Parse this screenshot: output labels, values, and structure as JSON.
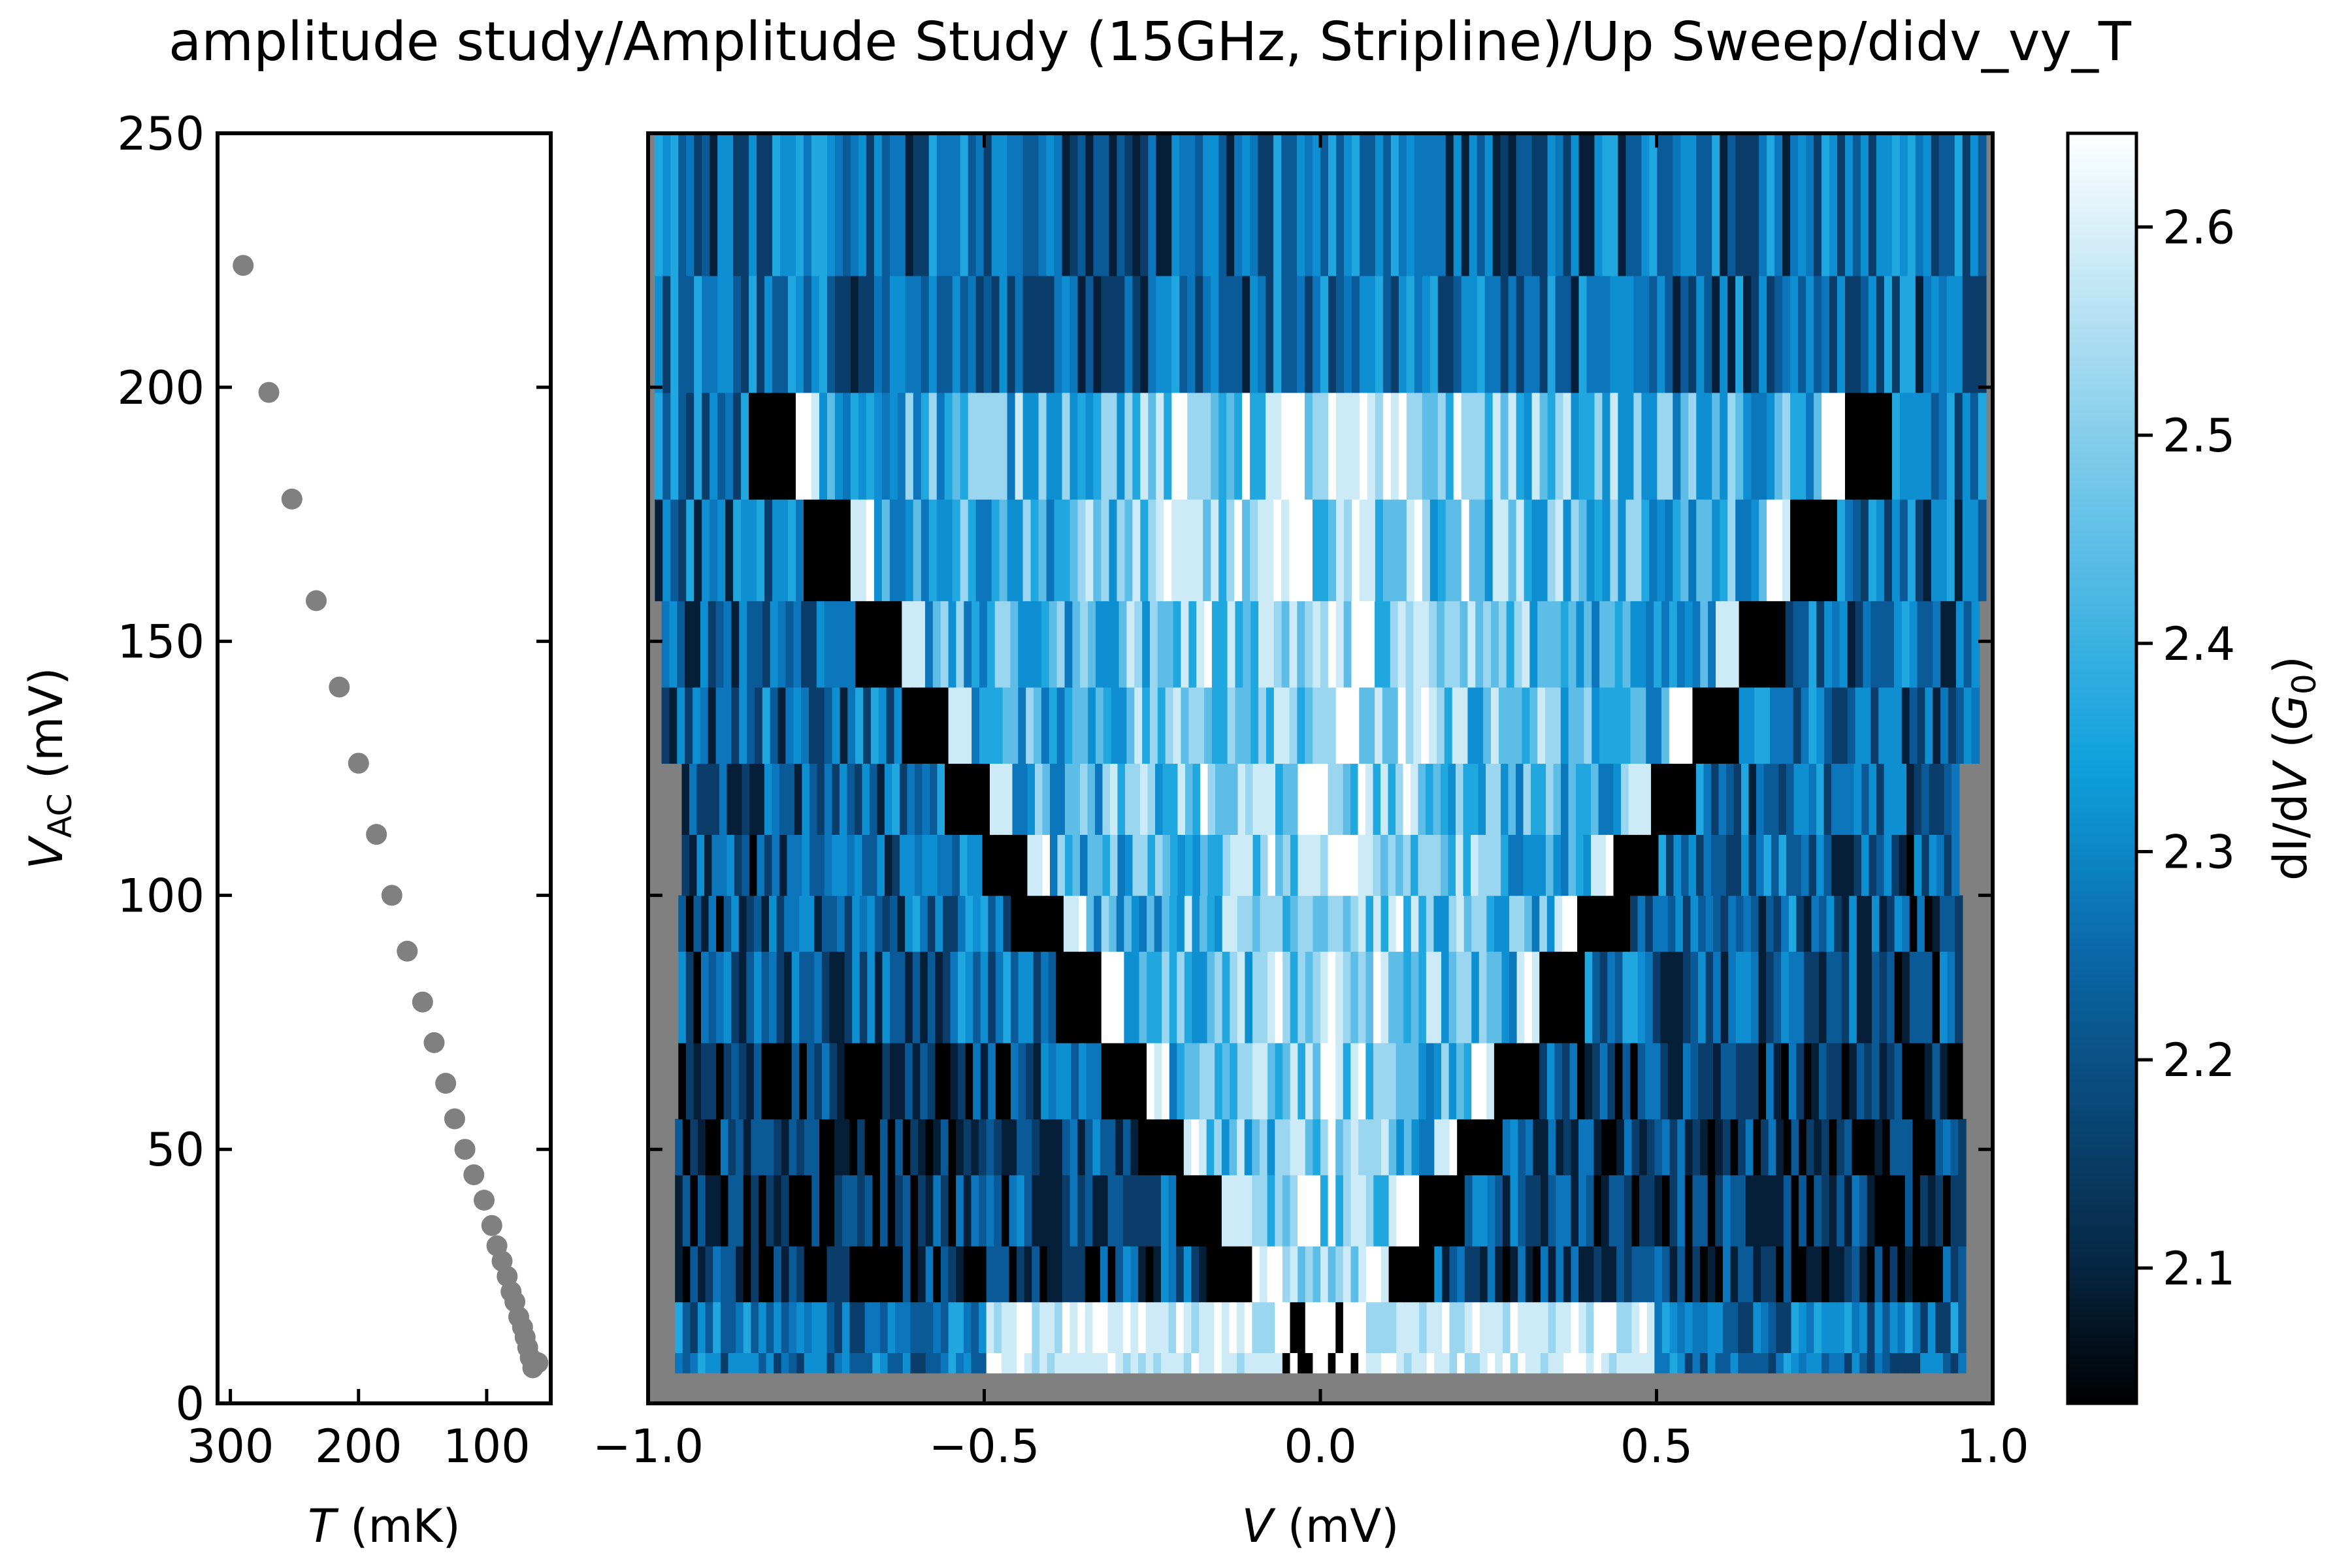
{
  "title": "amplitude study/Amplitude Study (15GHz, Stripline)/Up Sweep/didv_vy_T",
  "chart_data": [
    {
      "type": "scatter",
      "xlabel_italic": "T",
      "xlabel_rest": " (mK)",
      "ylabel_main": "V",
      "ylabel_sub": "AC",
      "ylabel_rest": " (mV)",
      "xlim": [
        310,
        50
      ],
      "ylim": [
        0,
        250
      ],
      "xticks": [
        300,
        200,
        100
      ],
      "yticks": [
        0,
        50,
        100,
        150,
        200,
        250
      ],
      "x_reversed": true,
      "marker_color": "#808080",
      "points": [
        [
          290,
          224
        ],
        [
          270,
          199
        ],
        [
          252,
          178
        ],
        [
          233,
          158
        ],
        [
          215,
          141
        ],
        [
          200,
          126
        ],
        [
          186,
          112
        ],
        [
          174,
          100
        ],
        [
          162,
          89
        ],
        [
          150,
          79
        ],
        [
          141,
          71
        ],
        [
          132,
          63
        ],
        [
          125,
          56
        ],
        [
          117,
          50
        ],
        [
          110,
          45
        ],
        [
          102,
          40
        ],
        [
          96,
          35
        ],
        [
          92,
          31
        ],
        [
          88,
          28
        ],
        [
          84,
          25
        ],
        [
          81,
          22
        ],
        [
          78,
          20
        ],
        [
          75,
          17
        ],
        [
          72,
          15
        ],
        [
          70,
          13
        ],
        [
          68,
          11
        ],
        [
          66,
          9
        ],
        [
          64,
          7
        ],
        [
          62,
          8
        ],
        [
          60,
          8
        ]
      ]
    },
    {
      "type": "heatmap",
      "xlabel_italic": "V",
      "xlabel_rest": " (mV)",
      "xlim": [
        -1.0,
        1.0
      ],
      "ylim": [
        0,
        250
      ],
      "xticks": [
        "−1.0",
        "−0.5",
        "0.0",
        "0.5",
        "1.0"
      ],
      "xtick_values": [
        -1.0,
        -0.5,
        0.0,
        0.5,
        1.0
      ],
      "yticks": [
        0,
        50,
        100,
        150,
        200,
        250
      ],
      "nan_color": "#808080",
      "colormap": [
        "#000000",
        "#0a3b63",
        "#0b72b5",
        "#0ea0dc",
        "#74c7ea",
        "#ffffff"
      ],
      "rows": [
        {
          "v_ac": [
            6,
            10
          ],
          "half_width": 0.96
        },
        {
          "v_ac": [
            10,
            20
          ],
          "half_width": 0.96
        },
        {
          "v_ac": [
            20,
            31
          ],
          "half_width": 0.96
        },
        {
          "v_ac": [
            31,
            45
          ],
          "half_width": 0.96
        },
        {
          "v_ac": [
            45,
            56
          ],
          "half_width": 0.96
        },
        {
          "v_ac": [
            56,
            71
          ],
          "half_width": 0.955
        },
        {
          "v_ac": [
            71,
            89
          ],
          "half_width": 0.955
        },
        {
          "v_ac": [
            89,
            100
          ],
          "half_width": 0.955
        },
        {
          "v_ac": [
            100,
            112
          ],
          "half_width": 0.95
        },
        {
          "v_ac": [
            112,
            126
          ],
          "half_width": 0.95
        },
        {
          "v_ac": [
            126,
            141
          ],
          "half_width": 0.98
        },
        {
          "v_ac": [
            141,
            158
          ],
          "half_width": 0.98
        },
        {
          "v_ac": [
            158,
            178
          ],
          "half_width": 0.99
        },
        {
          "v_ac": [
            178,
            199
          ],
          "half_width": 0.99
        },
        {
          "v_ac": [
            199,
            222
          ],
          "half_width": 0.99
        },
        {
          "v_ac": [
            222,
            250
          ],
          "half_width": 0.99
        }
      ],
      "resonance_slope_mV_per_mV": 0.0042,
      "resonance_offset_mV": 0.025
    },
    {
      "type": "colorbar",
      "label_prefix": "dI/d",
      "label_italic_v": "V",
      "label_open": " (",
      "label_italic_g": "G",
      "label_sub": "0",
      "label_close": ")",
      "range": [
        2.035,
        2.645
      ],
      "ticks": [
        2.1,
        2.2,
        2.3,
        2.4,
        2.5,
        2.6
      ]
    }
  ]
}
